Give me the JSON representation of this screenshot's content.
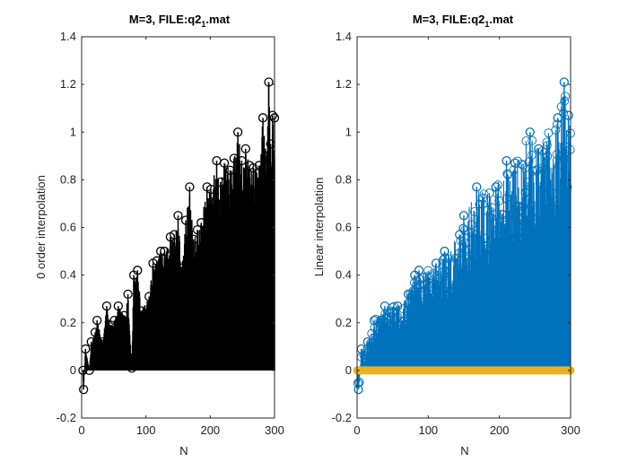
{
  "chart_data": [
    {
      "type": "stem",
      "title_main": "M=3, FILE:q2",
      "title_sub": "1",
      "title_end": ".mat",
      "xlabel": "N",
      "ylabel": "0 order interpolation",
      "xlim": [
        0,
        300
      ],
      "ylim": [
        -0.2,
        1.4
      ],
      "xticks": [
        "0",
        "100",
        "200",
        "300"
      ],
      "yticks": [
        "-0.2",
        "0",
        "0.2",
        "0.4",
        "0.6",
        "0.8",
        "1",
        "1.2",
        "1.4"
      ],
      "series": [
        {
          "color": "#000000",
          "marker": "circle",
          "key_points": [
            {
              "x": 2,
              "y": 0
            },
            {
              "x": 3,
              "y": -0.08
            },
            {
              "x": 6,
              "y": 0.09
            },
            {
              "x": 12,
              "y": 0.0
            },
            {
              "x": 15,
              "y": 0.12
            },
            {
              "x": 21,
              "y": 0.16
            },
            {
              "x": 24,
              "y": 0.21
            },
            {
              "x": 33,
              "y": 0.12
            },
            {
              "x": 39,
              "y": 0.27
            },
            {
              "x": 45,
              "y": 0.19
            },
            {
              "x": 51,
              "y": 0.21
            },
            {
              "x": 57,
              "y": 0.27
            },
            {
              "x": 66,
              "y": 0.23
            },
            {
              "x": 72,
              "y": 0.32
            },
            {
              "x": 78,
              "y": 0.01
            },
            {
              "x": 81,
              "y": 0.4
            },
            {
              "x": 87,
              "y": 0.42
            },
            {
              "x": 93,
              "y": 0.25
            },
            {
              "x": 105,
              "y": 0.31
            },
            {
              "x": 111,
              "y": 0.45
            },
            {
              "x": 117,
              "y": 0.46
            },
            {
              "x": 123,
              "y": 0.5
            },
            {
              "x": 129,
              "y": 0.5
            },
            {
              "x": 138,
              "y": 0.56
            },
            {
              "x": 144,
              "y": 0.57
            },
            {
              "x": 150,
              "y": 0.65
            },
            {
              "x": 156,
              "y": 0.43
            },
            {
              "x": 162,
              "y": 0.63
            },
            {
              "x": 168,
              "y": 0.77
            },
            {
              "x": 174,
              "y": 0.55
            },
            {
              "x": 180,
              "y": 0.59
            },
            {
              "x": 186,
              "y": 0.62
            },
            {
              "x": 195,
              "y": 0.77
            },
            {
              "x": 201,
              "y": 0.76
            },
            {
              "x": 210,
              "y": 0.88
            },
            {
              "x": 216,
              "y": 0.79
            },
            {
              "x": 222,
              "y": 0.87
            },
            {
              "x": 231,
              "y": 0.84
            },
            {
              "x": 237,
              "y": 0.89
            },
            {
              "x": 243,
              "y": 1.0
            },
            {
              "x": 249,
              "y": 0.88
            },
            {
              "x": 255,
              "y": 0.93
            },
            {
              "x": 261,
              "y": 0.86
            },
            {
              "x": 267,
              "y": 0.85
            },
            {
              "x": 276,
              "y": 0.86
            },
            {
              "x": 282,
              "y": 1.06
            },
            {
              "x": 288,
              "y": 0.9
            },
            {
              "x": 291,
              "y": 1.21
            },
            {
              "x": 294,
              "y": 0.95
            },
            {
              "x": 297,
              "y": 1.07
            },
            {
              "x": 300,
              "y": 1.06
            }
          ]
        }
      ]
    },
    {
      "type": "stem",
      "title_main": "M=3, FILE:q2",
      "title_sub": "1",
      "title_end": ".mat",
      "xlabel": "N",
      "ylabel": "Linear interpolation",
      "xlim": [
        0,
        300
      ],
      "ylim": [
        -0.2,
        1.4
      ],
      "xticks": [
        "0",
        "100",
        "200",
        "300"
      ],
      "yticks": [
        "-0.2",
        "0",
        "0.2",
        "0.4",
        "0.6",
        "0.8",
        "1",
        "1.2",
        "1.4"
      ],
      "series": [
        {
          "color": "#0072BD",
          "marker": "circle",
          "key_points": [
            {
              "x": 2,
              "y": -0.08
            },
            {
              "x": 3,
              "y": -0.05
            },
            {
              "x": 6,
              "y": 0.09
            },
            {
              "x": 12,
              "y": 0.05
            },
            {
              "x": 15,
              "y": 0.12
            },
            {
              "x": 24,
              "y": 0.21
            },
            {
              "x": 39,
              "y": 0.27
            },
            {
              "x": 57,
              "y": 0.27
            },
            {
              "x": 72,
              "y": 0.32
            },
            {
              "x": 81,
              "y": 0.4
            },
            {
              "x": 87,
              "y": 0.42
            },
            {
              "x": 111,
              "y": 0.45
            },
            {
              "x": 123,
              "y": 0.5
            },
            {
              "x": 144,
              "y": 0.57
            },
            {
              "x": 150,
              "y": 0.65
            },
            {
              "x": 168,
              "y": 0.77
            },
            {
              "x": 195,
              "y": 0.77
            },
            {
              "x": 210,
              "y": 0.88
            },
            {
              "x": 222,
              "y": 0.87
            },
            {
              "x": 243,
              "y": 1.0
            },
            {
              "x": 255,
              "y": 0.93
            },
            {
              "x": 282,
              "y": 1.06
            },
            {
              "x": 291,
              "y": 1.21
            },
            {
              "x": 297,
              "y": 1.07
            }
          ]
        },
        {
          "color": "#EDB120",
          "marker": "circle",
          "key_points": [
            {
              "x": 0,
              "y": 0
            },
            {
              "x": 300,
              "y": 0
            }
          ]
        }
      ]
    }
  ]
}
